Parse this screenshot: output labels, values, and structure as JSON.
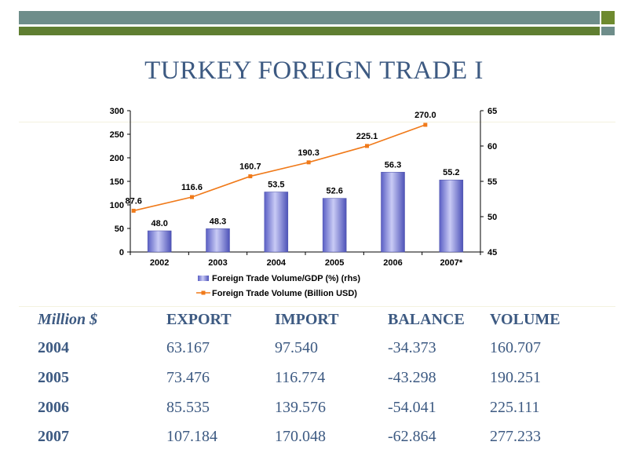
{
  "slide": {
    "title": "TURKEY FOREIGN TRADE I"
  },
  "chart_data": {
    "type": "bar",
    "categories": [
      "2002",
      "2003",
      "2004",
      "2005",
      "2006",
      "2007*"
    ],
    "series": [
      {
        "name": "Foreign Trade Volume/GDP (%) (rhs)",
        "kind": "bar",
        "axis": "right",
        "values": [
          48.0,
          48.3,
          53.5,
          52.6,
          56.3,
          55.2
        ],
        "labels": [
          "48.0",
          "48.3",
          "53.5",
          "52.6",
          "56.3",
          "55.2"
        ],
        "color": "#7b7fd6"
      },
      {
        "name": "Foreign Trade Volume (Billion USD)",
        "kind": "line",
        "axis": "left",
        "values": [
          87.6,
          116.6,
          160.7,
          190.3,
          225.1,
          270.0
        ],
        "labels": [
          "87.6",
          "116.6",
          "160.7",
          "190.3",
          "225.1",
          "270.0"
        ],
        "color": "#f07a1a"
      }
    ],
    "y_left": {
      "range": [
        0,
        300
      ],
      "ticks": [
        "0",
        "50",
        "100",
        "150",
        "200",
        "250",
        "300"
      ]
    },
    "y_right": {
      "range": [
        45,
        65
      ],
      "ticks": [
        "45",
        "50",
        "55",
        "60",
        "65"
      ]
    },
    "legend": "bottom",
    "grid": false
  },
  "table": {
    "headers": [
      "Million $",
      "EXPORT",
      "IMPORT",
      "BALANCE",
      "VOLUME"
    ],
    "rows": [
      [
        "2004",
        "63.167",
        "97.540",
        "-34.373",
        "160.707"
      ],
      [
        "2005",
        "73.476",
        "116.774",
        "-43.298",
        "190.251"
      ],
      [
        "2006",
        "85.535",
        "139.576",
        "-54.041",
        "225.111"
      ],
      [
        "2007",
        "107.184",
        "170.048",
        "-62.864",
        "277.233"
      ]
    ]
  },
  "colors": {
    "title": "#3d5a82",
    "band_teal": "#6e8d8a",
    "band_olive": "#5f7e31",
    "bar": "#7b7fd6",
    "line": "#f07a1a"
  }
}
